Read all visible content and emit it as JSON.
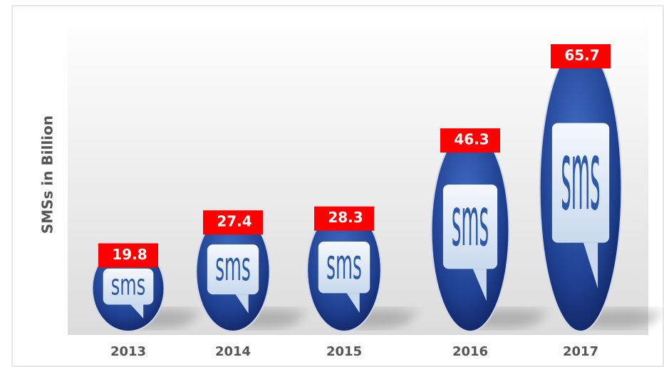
{
  "chart_data": {
    "type": "pictograph",
    "y_label": "SMSs in Billion",
    "icon_text": "sms",
    "categories": [
      "2013",
      "2014",
      "2015",
      "2016",
      "2017"
    ],
    "values": [
      19.8,
      27.4,
      28.3,
      46.3,
      65.7
    ],
    "color": "#1f3f8f",
    "label_color": "#ff0000"
  }
}
